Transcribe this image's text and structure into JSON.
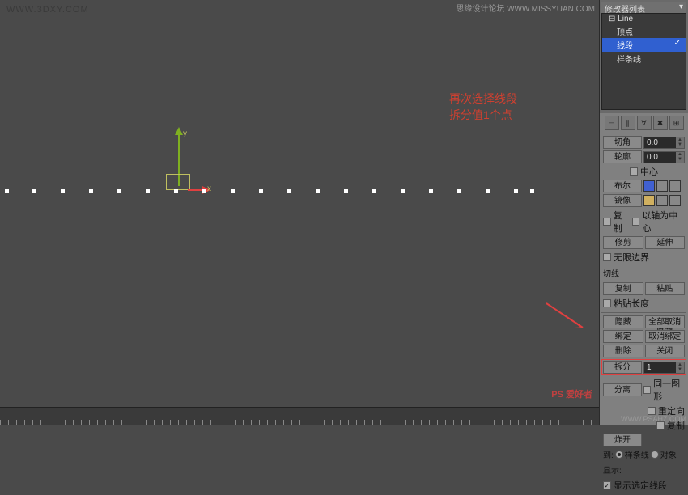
{
  "url": "WWW.3DXY.COM",
  "annotation": {
    "line1": "再次选择线段",
    "line2": "拆分值1个点"
  },
  "axes": {
    "x": "x",
    "y": "y"
  },
  "vertices_x": [
    6,
    40,
    75,
    110,
    145,
    180,
    215,
    250,
    285,
    320,
    355,
    390,
    425,
    460,
    495,
    530,
    565,
    600,
    635,
    655
  ],
  "stack": {
    "title": "修改器列表",
    "root": "⊟ Line",
    "items": [
      "顶点",
      "线段",
      "样条线"
    ],
    "selected_index": 1
  },
  "geom": {
    "qiejiao": "切角",
    "qiejiao_val": "0.0",
    "lunkuo": "轮廓",
    "lunkuo_val": "0.0",
    "zhongxin": "中心",
    "buer": "布尔",
    "bool_colors": [
      "#4060d0",
      "#888",
      "#888",
      "#888"
    ],
    "jingxiang": "镜像",
    "mirror_colors": [
      "#d0b060",
      "#888",
      "#888"
    ],
    "fuzhi": "复制",
    "yizhou": "以轴为中心",
    "xiujian": "修剪",
    "yanshen": "延伸",
    "wuxian": "无限边界",
    "qiexian_header": "切线",
    "fuzhi2": "复制",
    "zhantie": "粘贴",
    "zhantie_len": "粘贴长度",
    "yincang": "隐藏",
    "quanbuqx": "全部取消隐藏",
    "bangding": "绑定",
    "quxiaobd": "取消绑定",
    "shanchu": "删除",
    "guanbi": "关闭",
    "chaifen": "拆分",
    "chaifen_val": "1",
    "fenli": "分离",
    "tongyi": "同一图形",
    "chongding": "重定向",
    "fuzhi3": "复制",
    "zhakai": "炸开",
    "dao": "到:",
    "yangtiao": "样条线",
    "duixiang": "对象",
    "xianshi": "显示:",
    "xianshi_xd": "显示选定线段"
  },
  "watermarks": {
    "top": "思缘设计论坛 WWW.MISSYUAN.COM",
    "bottom": "WWW.PSAHZ.COM",
    "logo": "PS 爱好者"
  }
}
